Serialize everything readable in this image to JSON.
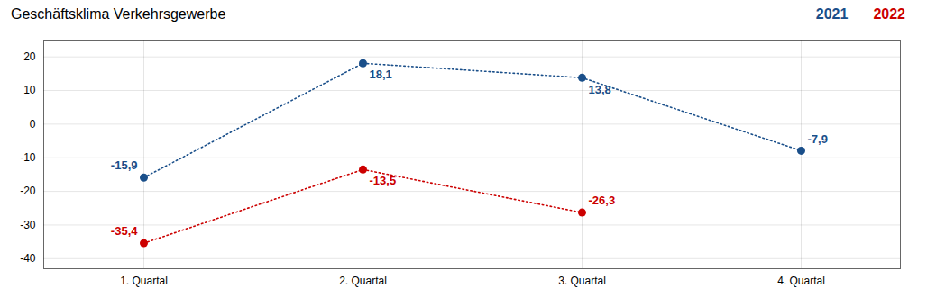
{
  "chart_data": {
    "type": "line",
    "title": "Geschäftsklima Verkehrsgewerbe",
    "categories": [
      "1. Quartal",
      "2. Quartal",
      "3. Quartal",
      "4. Quartal"
    ],
    "series": [
      {
        "name": "2021",
        "color": "#1a4f8a",
        "values": [
          -15.9,
          18.1,
          13.8,
          -7.9
        ],
        "value_labels": [
          "-15,9",
          "18,1",
          "13,8",
          "-7,9"
        ],
        "line_style": "dotted",
        "marker": "circle"
      },
      {
        "name": "2022",
        "color": "#cc0000",
        "values": [
          -35.4,
          -13.5,
          -26.3,
          null
        ],
        "value_labels": [
          "-35,4",
          "-13,5",
          "-26,3",
          null
        ],
        "line_style": "dotted",
        "marker": "circle"
      }
    ],
    "ylim": [
      -43,
      25
    ],
    "yticks": [
      -40,
      -30,
      -20,
      -10,
      0,
      10,
      20
    ],
    "grid": true,
    "legend": "upper right",
    "data_labels": true
  }
}
